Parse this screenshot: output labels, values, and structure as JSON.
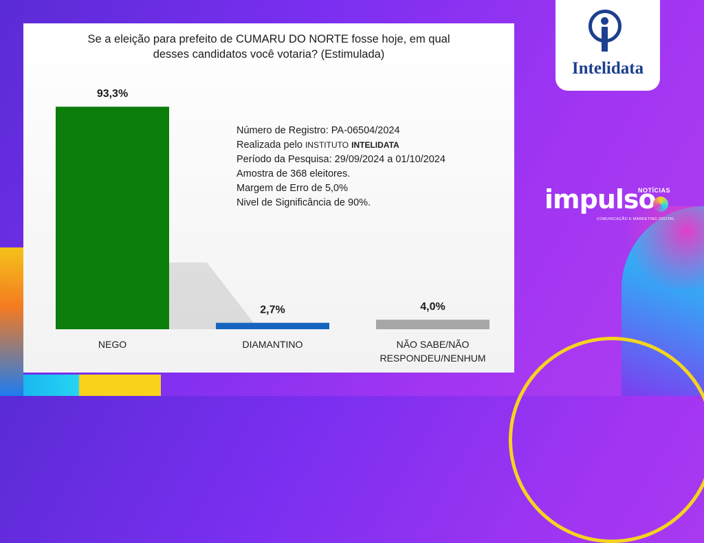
{
  "chart_data": {
    "type": "bar",
    "title": "Se a eleição para prefeito de CUMARU DO NORTE fosse hoje, em qual desses candidatos você votaria? (Estimulada)",
    "title_lines": [
      "Se a eleição para prefeito de CUMARU DO NORTE fosse hoje, em qual",
      "desses candidatos você votaria? (Estimulada)"
    ],
    "categories": [
      "NEGO",
      "DIAMANTINO",
      "NÃO SABE/NÃO RESPONDEU/NENHUM"
    ],
    "category_lines": [
      [
        "NEGO"
      ],
      [
        "DIAMANTINO"
      ],
      [
        "NÃO SABE/NÃO",
        "RESPONDEU/NENHUM"
      ]
    ],
    "values": [
      93.3,
      2.7,
      4.0
    ],
    "value_labels": [
      "93,3%",
      "2,7%",
      "4,0%"
    ],
    "colors": [
      "#0a7d0a",
      "#1565c0",
      "#a6a6a6"
    ],
    "ylim": [
      0,
      100
    ],
    "xlabel": "",
    "ylabel": ""
  },
  "info": {
    "registro": "Número de Registro: PA-06504/2024",
    "realizada_prefix": "Realizada pelo",
    "instituto": "INSTITUTO",
    "instituto_nome": "INTELIDATA",
    "periodo": "Período da Pesquisa: 29/09/2024 a 01/10/2024",
    "amostra": "Amostra de 368 eleitores.",
    "margem": "Margem de Erro de 5,0%",
    "significancia": "Nivel de Significância de 90%."
  },
  "logo": {
    "name": "Intelidata"
  },
  "impulso": {
    "word": "impulso",
    "noticias": "NOTÍCIAS",
    "sub": "COMUNICAÇÃO E MARKETING DIGITAL"
  }
}
